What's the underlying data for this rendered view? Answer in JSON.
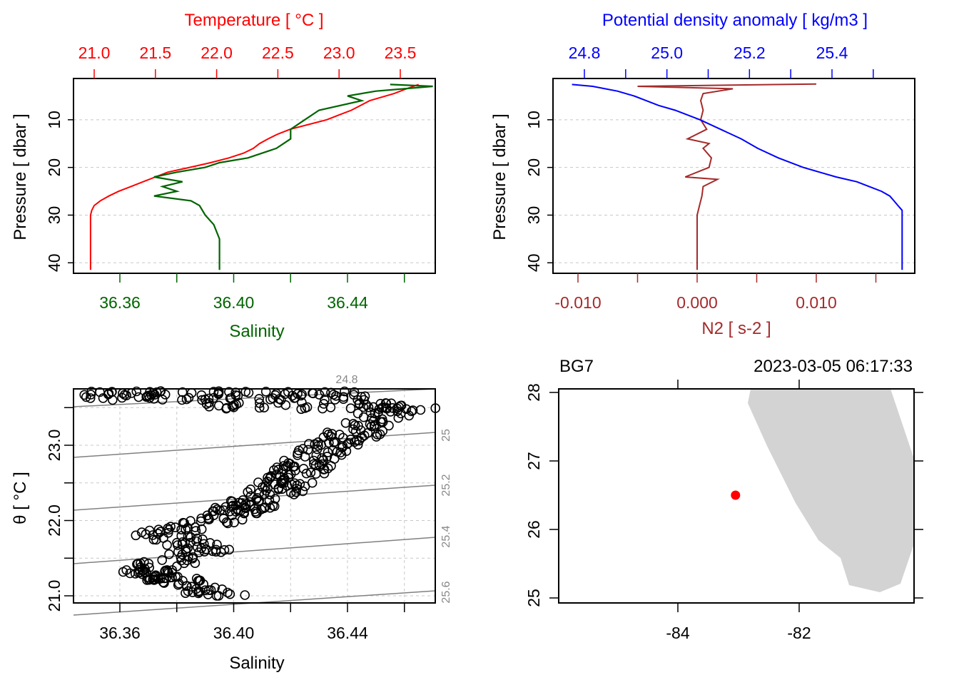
{
  "chart_data": [
    {
      "type": "line",
      "panel": "top-left",
      "title_top": "Temperature [ °C ]",
      "xlabel_bottom": "Salinity",
      "ylabel": "Pressure [ dbar ]",
      "y_ticks": [
        "10",
        "20",
        "30",
        "40"
      ],
      "top_ticks": [
        "21.0",
        "21.5",
        "22.0",
        "22.5",
        "23.0",
        "23.5"
      ],
      "bottom_ticks": [
        "36.36",
        "36.40",
        "36.44"
      ],
      "colors": {
        "temperature": "#ff0000",
        "salinity": "#006400"
      },
      "series": [
        {
          "name": "Temperature",
          "axis": "top",
          "pressure": [
            2.6,
            3.5,
            4.5,
            6,
            8,
            9,
            10,
            11,
            12,
            13,
            14,
            15,
            16,
            17,
            18,
            19,
            20,
            21,
            22,
            23,
            24,
            25,
            26,
            27,
            28,
            29,
            30,
            35,
            41.5
          ],
          "values": [
            23.65,
            23.55,
            23.45,
            23.25,
            23.1,
            23.0,
            22.9,
            22.75,
            22.6,
            22.5,
            22.42,
            22.35,
            22.3,
            22.22,
            22.1,
            21.95,
            21.78,
            21.6,
            21.5,
            21.4,
            21.3,
            21.2,
            21.12,
            21.05,
            21.0,
            20.98,
            20.97,
            20.97,
            20.97
          ]
        },
        {
          "name": "Salinity",
          "axis": "bottom",
          "pressure": [
            2.6,
            3,
            4,
            5,
            6,
            8,
            10,
            12,
            14,
            16,
            18,
            19,
            20,
            21,
            22,
            23,
            24,
            25,
            26,
            27,
            28,
            30,
            32,
            35,
            38,
            41.5
          ],
          "values": [
            36.455,
            36.47,
            36.45,
            36.44,
            36.445,
            36.43,
            36.425,
            36.42,
            36.42,
            36.415,
            36.405,
            36.395,
            36.39,
            36.38,
            36.372,
            36.382,
            36.375,
            36.38,
            36.372,
            36.385,
            36.388,
            36.39,
            36.393,
            36.395,
            36.395,
            36.395
          ]
        }
      ]
    },
    {
      "type": "line",
      "panel": "top-right",
      "title_top": "Potential density anomaly [ kg/m3 ]",
      "xlabel_bottom": "N2 [ s-2 ]",
      "ylabel": "Pressure [ dbar ]",
      "y_ticks": [
        "10",
        "20",
        "30",
        "40"
      ],
      "top_ticks": [
        "24.8",
        "25.0",
        "25.2",
        "25.4"
      ],
      "bottom_ticks": [
        "-0.010",
        "0.000",
        "0.010"
      ],
      "colors": {
        "density": "#0000ff",
        "n2": "#a52a2a"
      },
      "series": [
        {
          "name": "Potential density anomaly",
          "axis": "top",
          "pressure": [
            2.6,
            3,
            4,
            5,
            6,
            7,
            8,
            10,
            12,
            14,
            16,
            18,
            20,
            21,
            22,
            23,
            24,
            25,
            26,
            27,
            28,
            29,
            30,
            35,
            41.5
          ],
          "values": [
            24.77,
            24.82,
            24.88,
            24.92,
            24.95,
            24.98,
            25.02,
            25.08,
            25.13,
            25.18,
            25.22,
            25.27,
            25.33,
            25.37,
            25.41,
            25.46,
            25.49,
            25.52,
            25.54,
            25.55,
            25.56,
            25.57,
            25.57,
            25.57,
            25.57
          ]
        },
        {
          "name": "N2",
          "axis": "bottom",
          "pressure": [
            2.5,
            3,
            3.5,
            4.5,
            6,
            8,
            10,
            12,
            14,
            15,
            16,
            18,
            20,
            22,
            22.5,
            24,
            26,
            28,
            30,
            35,
            41.5
          ],
          "values": [
            0.01,
            -0.005,
            0.003,
            0.0005,
            0.0003,
            0.0005,
            0.0003,
            0.0008,
            -0.0008,
            0.001,
            0.0005,
            0.0012,
            0.001,
            -0.001,
            0.0017,
            0.0005,
            0.0004,
            0.0002,
            0.0,
            0.0,
            0.0
          ]
        }
      ]
    },
    {
      "type": "scatter",
      "panel": "bottom-left",
      "xlabel": "Salinity",
      "ylabel": "θ [ °C ]",
      "x_ticks": [
        "36.36",
        "36.40",
        "36.44"
      ],
      "y_ticks": [
        "21.0",
        "22.0",
        "23.0"
      ],
      "xlim": [
        36.345,
        36.47
      ],
      "ylim": [
        20.9,
        23.8
      ],
      "density_contours": [
        "24.8",
        "25",
        "25.2",
        "25.4",
        "25.6"
      ],
      "colors": {
        "points": "#000000",
        "contours": "#808080"
      }
    },
    {
      "type": "map",
      "panel": "bottom-right",
      "station": "BG7",
      "datetime": "2023-03-05 06:17:33",
      "x_ticks": [
        "-84",
        "-82"
      ],
      "y_ticks": [
        "25",
        "26",
        "27",
        "28"
      ],
      "station_lon": -83.05,
      "station_lat": 26.5,
      "colors": {
        "land": "#d3d3d3",
        "station": "#ff0000"
      }
    }
  ]
}
